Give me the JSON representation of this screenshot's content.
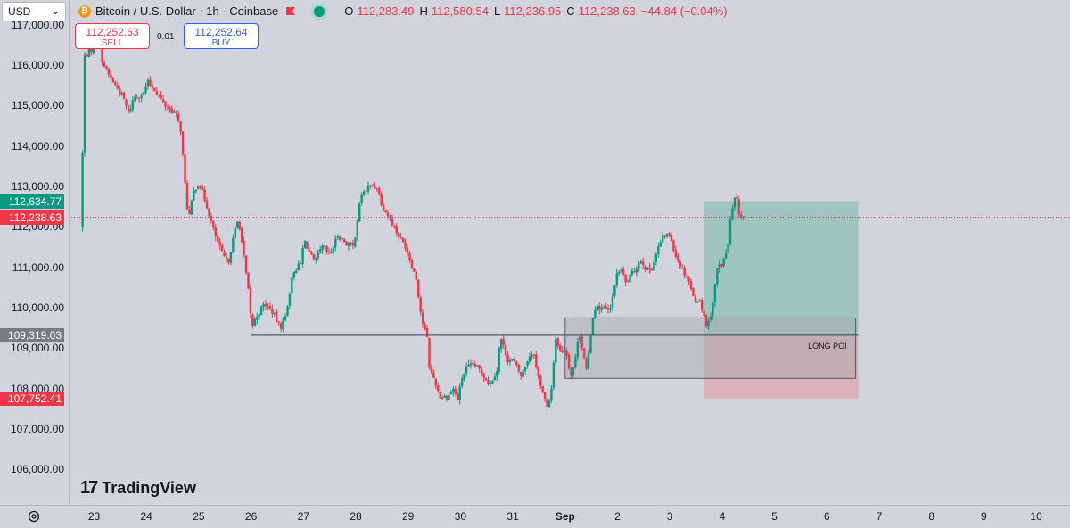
{
  "topbar": {
    "currency": "USD",
    "title": "Bitcoin / U.S. Dollar · 1h · Coinbase",
    "ohlc": [
      {
        "k": "O",
        "v": "112,283.49"
      },
      {
        "k": "H",
        "v": "112,580.54"
      },
      {
        "k": "L",
        "v": "112,236.95"
      },
      {
        "k": "C",
        "v": "112,238.63"
      },
      {
        "k": "",
        "v": "−44.84 (−0.04%)"
      }
    ]
  },
  "trade": {
    "sell_price": "112,252.63",
    "sell_label": "SELL",
    "spread": "0.01",
    "buy_price": "112,252.64",
    "buy_label": "BUY"
  },
  "branding": "TradingView",
  "colors": {
    "up": "#089981",
    "down": "#f23645",
    "profit_zone": "#8fbfb5",
    "loss_zone": "#ddaab3",
    "poi_zone": "#a7a9b2"
  },
  "chart_data": {
    "type": "candlestick",
    "symbol": "Bitcoin / U.S. Dollar",
    "interval": "1h",
    "exchange": "Coinbase",
    "ylim": [
      105500,
      117250
    ],
    "price_ticks": [
      "117,000.00",
      "116,000.00",
      "115,000.00",
      "114,000.00",
      "113,000.00",
      "112,000.00",
      "111,000.00",
      "110,000.00",
      "109,000.00",
      "108,000.00",
      "107,000.00",
      "106,000.00"
    ],
    "x_ticks": [
      "23",
      "24",
      "25",
      "26",
      "27",
      "28",
      "29",
      "30",
      "31",
      "Sep",
      "2",
      "3",
      "4",
      "5",
      "6",
      "7",
      "8",
      "9",
      "10"
    ],
    "price_labels": [
      {
        "value": 112634.77,
        "text": "112,634.77",
        "color": "#089981"
      },
      {
        "value": 112238.63,
        "text": "112,238.63",
        "color": "#f23645"
      },
      {
        "value": 109319.03,
        "text": "109,319.03",
        "color": "#787b86"
      },
      {
        "value": 107752.41,
        "text": "107,752.41",
        "color": "#f23645"
      }
    ],
    "anchors": [
      [
        22.8,
        112000
      ],
      [
        22.85,
        116200
      ],
      [
        23.0,
        116400
      ],
      [
        23.1,
        116800
      ],
      [
        23.2,
        116100
      ],
      [
        23.3,
        115800
      ],
      [
        23.45,
        115500
      ],
      [
        23.6,
        115200
      ],
      [
        23.7,
        114800
      ],
      [
        23.8,
        115200
      ],
      [
        24.0,
        115300
      ],
      [
        24.05,
        115600
      ],
      [
        24.2,
        115400
      ],
      [
        24.4,
        115000
      ],
      [
        24.6,
        114800
      ],
      [
        24.7,
        114400
      ],
      [
        24.8,
        112700
      ],
      [
        24.85,
        112200
      ],
      [
        24.95,
        112900
      ],
      [
        25.05,
        113100
      ],
      [
        25.2,
        112500
      ],
      [
        25.35,
        111800
      ],
      [
        25.5,
        111300
      ],
      [
        25.6,
        111100
      ],
      [
        25.75,
        112000
      ],
      [
        25.8,
        112200
      ],
      [
        25.9,
        111300
      ],
      [
        26.0,
        110300
      ],
      [
        26.05,
        109500
      ],
      [
        26.15,
        109800
      ],
      [
        26.3,
        110100
      ],
      [
        26.45,
        109900
      ],
      [
        26.6,
        109500
      ],
      [
        26.7,
        109800
      ],
      [
        26.85,
        110900
      ],
      [
        27.0,
        111100
      ],
      [
        27.05,
        111700
      ],
      [
        27.25,
        111100
      ],
      [
        27.4,
        111500
      ],
      [
        27.55,
        111300
      ],
      [
        27.7,
        111800
      ],
      [
        27.85,
        111600
      ],
      [
        28.0,
        111500
      ],
      [
        28.05,
        112000
      ],
      [
        28.15,
        112800
      ],
      [
        28.3,
        113000
      ],
      [
        28.45,
        113000
      ],
      [
        28.55,
        112500
      ],
      [
        28.7,
        112200
      ],
      [
        28.85,
        111800
      ],
      [
        29.0,
        111500
      ],
      [
        29.1,
        111100
      ],
      [
        29.2,
        110700
      ],
      [
        29.3,
        109700
      ],
      [
        29.4,
        109300
      ],
      [
        29.45,
        108500
      ],
      [
        29.55,
        108200
      ],
      [
        29.65,
        107800
      ],
      [
        29.8,
        107800
      ],
      [
        29.9,
        108000
      ],
      [
        30.0,
        107700
      ],
      [
        30.05,
        108200
      ],
      [
        30.15,
        108500
      ],
      [
        30.3,
        108600
      ],
      [
        30.45,
        108400
      ],
      [
        30.6,
        108100
      ],
      [
        30.75,
        108500
      ],
      [
        30.8,
        109300
      ],
      [
        30.95,
        108700
      ],
      [
        31.05,
        108700
      ],
      [
        31.2,
        108300
      ],
      [
        31.35,
        108800
      ],
      [
        31.45,
        108900
      ],
      [
        31.5,
        108400
      ],
      [
        31.6,
        108000
      ],
      [
        31.7,
        107500
      ],
      [
        31.75,
        107700
      ],
      [
        31.8,
        108200
      ],
      [
        31.85,
        109300
      ],
      [
        31.95,
        108900
      ],
      [
        32.05,
        109000
      ],
      [
        32.15,
        108300
      ],
      [
        32.25,
        108800
      ],
      [
        32.3,
        109500
      ],
      [
        32.45,
        108400
      ],
      [
        32.55,
        109600
      ],
      [
        32.6,
        110000
      ],
      [
        32.75,
        110000
      ],
      [
        32.9,
        109900
      ],
      [
        33.0,
        110700
      ],
      [
        33.1,
        111000
      ],
      [
        33.2,
        110600
      ],
      [
        33.35,
        110900
      ],
      [
        33.5,
        111200
      ],
      [
        33.6,
        110900
      ],
      [
        33.7,
        111000
      ],
      [
        33.85,
        111600
      ],
      [
        33.95,
        111800
      ],
      [
        34.05,
        111800
      ],
      [
        34.15,
        111300
      ],
      [
        34.3,
        110900
      ],
      [
        34.4,
        110700
      ],
      [
        34.5,
        110200
      ],
      [
        34.6,
        110200
      ],
      [
        34.7,
        109800
      ],
      [
        34.75,
        109500
      ],
      [
        34.85,
        110000
      ],
      [
        34.95,
        111000
      ],
      [
        35.05,
        111100
      ],
      [
        35.15,
        111500
      ],
      [
        35.2,
        112200
      ],
      [
        35.3,
        112800
      ],
      [
        35.35,
        112400
      ],
      [
        35.4,
        112240
      ]
    ],
    "annotations": [
      {
        "type": "position",
        "direction": "long",
        "start_x": 34.65,
        "end_x": 37.6,
        "entry": 109319.03,
        "target": 112634.77,
        "stop": 107752.41
      },
      {
        "type": "rectangle",
        "label": "LONG POI",
        "start_x": 32.0,
        "end_x": 37.55,
        "top": 109750,
        "bottom": 108250
      },
      {
        "type": "horizontal_ray",
        "start_x": 26.0,
        "value": 109319.03
      }
    ]
  }
}
